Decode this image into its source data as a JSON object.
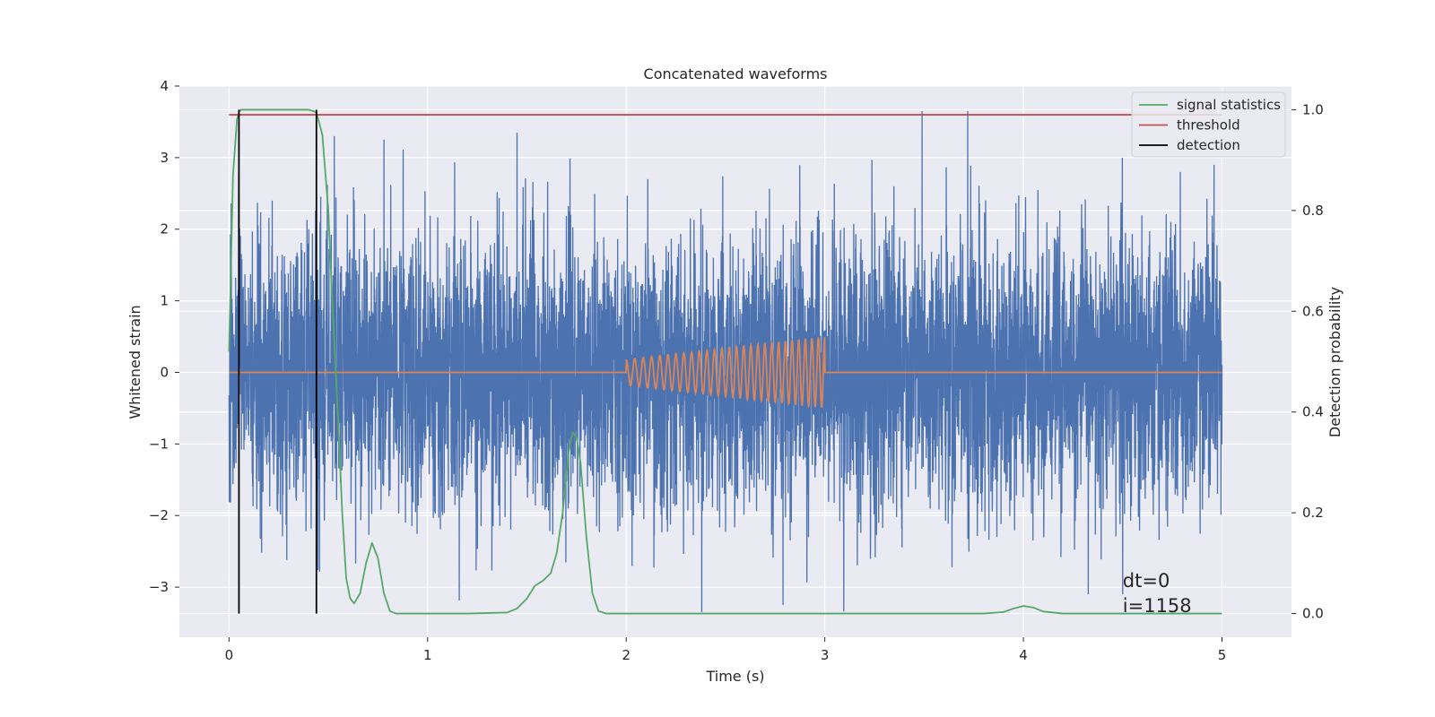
{
  "chart_data": {
    "type": "line",
    "title": "Concatenated waveforms",
    "xlabel": "Time (s)",
    "ylabel": "Whitened strain",
    "y2label": "Detection probability",
    "xlim": [
      -0.25,
      5.35
    ],
    "ylim": [
      -3.7,
      4.0
    ],
    "y2lim": [
      -0.047,
      1.047
    ],
    "xticks": [
      0,
      1,
      2,
      3,
      4,
      5
    ],
    "yticks": [
      -3,
      -2,
      -1,
      0,
      1,
      2,
      3,
      4
    ],
    "y2ticks": [
      0.0,
      0.2,
      0.4,
      0.6,
      0.8,
      1.0
    ],
    "ytick_labels": [
      "−3",
      "−2",
      "−1",
      "0",
      "1",
      "2",
      "3",
      "4"
    ],
    "y2tick_labels": [
      "0.0",
      "0.2",
      "0.4",
      "0.6",
      "0.8",
      "1.0"
    ],
    "grid": true,
    "legend_position": "top-right",
    "series": [
      {
        "kind": "noise",
        "axis": "left",
        "color": "#4c72b0",
        "x_range": [
          0,
          5
        ],
        "amplitude_range": [
          -3.35,
          3.65
        ],
        "peaks": [
          [
            0.53,
            3.3
          ],
          [
            0.78,
            3.25
          ],
          [
            1.72,
            2.2
          ],
          [
            2.38,
            -3.35
          ],
          [
            2.79,
            -3.25
          ],
          [
            3.72,
            3.65
          ],
          [
            3.81,
            2.4
          ],
          [
            4.5,
            -3.1
          ],
          [
            4.79,
            2.8
          ],
          [
            4.96,
            2.9
          ]
        ]
      },
      {
        "kind": "chirp",
        "axis": "left",
        "color": "#dd8452",
        "x_range": [
          0,
          5
        ],
        "signal_window": [
          2.0,
          3.0
        ],
        "amplitude_start": 0.18,
        "amplitude_end": 0.5,
        "cycles": 27
      },
      {
        "name": "signal statistics",
        "axis": "right",
        "color": "#55a868",
        "x": [
          0.0,
          0.02,
          0.04,
          0.05,
          0.06,
          0.08,
          0.1,
          0.2,
          0.3,
          0.4,
          0.44,
          0.47,
          0.5,
          0.52,
          0.55,
          0.57,
          0.59,
          0.61,
          0.63,
          0.66,
          0.69,
          0.72,
          0.75,
          0.78,
          0.81,
          0.84,
          0.9,
          1.0,
          1.2,
          1.4,
          1.45,
          1.5,
          1.54,
          1.58,
          1.62,
          1.65,
          1.68,
          1.71,
          1.73,
          1.75,
          1.77,
          1.8,
          1.83,
          1.86,
          1.9,
          2.2,
          3.0,
          3.8,
          3.9,
          3.95,
          4.0,
          4.05,
          4.1,
          4.2,
          5.0
        ],
        "y": [
          0.52,
          0.87,
          0.98,
          0.995,
          1.0,
          1.0,
          1.0,
          1.0,
          1.0,
          1.0,
          0.995,
          0.95,
          0.8,
          0.62,
          0.38,
          0.2,
          0.07,
          0.03,
          0.02,
          0.04,
          0.1,
          0.14,
          0.11,
          0.04,
          0.005,
          0.0,
          0.0,
          0.0,
          0.0,
          0.002,
          0.01,
          0.03,
          0.055,
          0.065,
          0.08,
          0.12,
          0.2,
          0.32,
          0.36,
          0.35,
          0.3,
          0.15,
          0.04,
          0.005,
          0.0,
          0.0,
          0.0,
          0.0,
          0.003,
          0.01,
          0.015,
          0.012,
          0.004,
          0.0,
          0.0
        ]
      },
      {
        "name": "threshold",
        "axis": "right",
        "color": "#c44e52",
        "x": [
          0,
          5
        ],
        "y": [
          0.99,
          0.99
        ]
      },
      {
        "name": "detection",
        "axis": "right",
        "color": "#000000",
        "kind": "vlines",
        "x": [
          0.05,
          0.44
        ],
        "y_range": [
          0.0,
          1.0
        ]
      }
    ],
    "annotation": {
      "lines": [
        "dt=0",
        "i=1158"
      ],
      "x": 4.5,
      "y": -3.0
    }
  }
}
